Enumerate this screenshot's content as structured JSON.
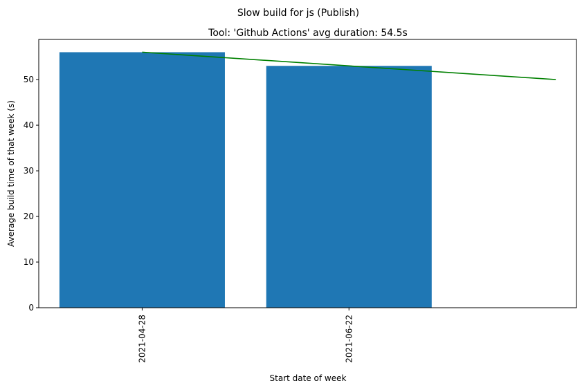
{
  "chart_data": {
    "type": "bar",
    "suptitle": "Slow build for js (Publish)",
    "title": "Tool: 'Github Actions' avg duration: 54.5s",
    "xlabel": "Start date of week",
    "ylabel": "Average build time of that week (s)",
    "categories": [
      "2021-04-28",
      "2021-06-22"
    ],
    "values": [
      56,
      53
    ],
    "bar_color": "#1f77b4",
    "trend_line": {
      "x": [
        0,
        2
      ],
      "y": [
        56,
        50
      ],
      "color": "#008000"
    },
    "xlim": [
      -0.5,
      2.1
    ],
    "ylim": [
      0,
      58.8
    ],
    "yticks": [
      0,
      10,
      20,
      30,
      40,
      50
    ],
    "grid": false,
    "legend": "none"
  }
}
